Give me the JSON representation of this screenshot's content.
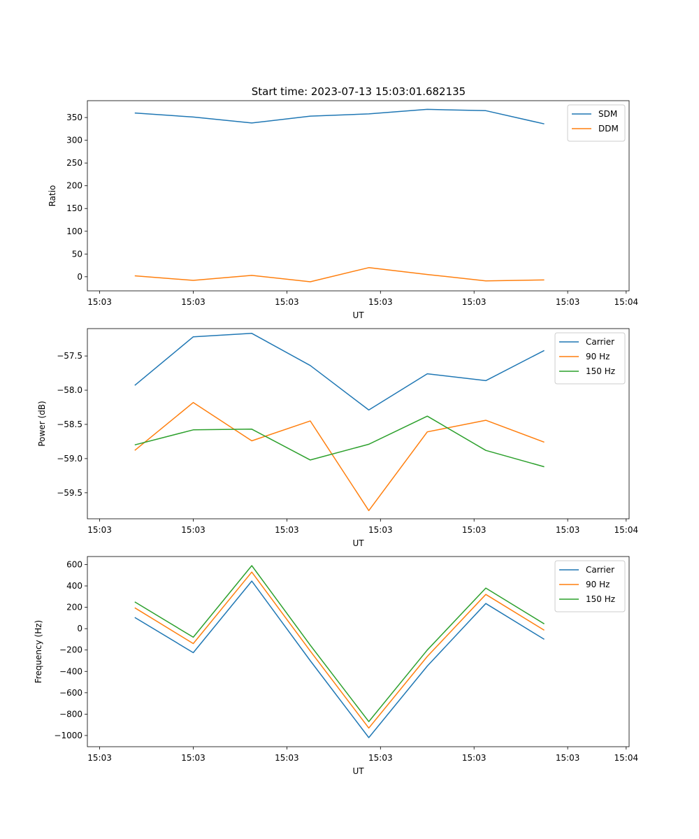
{
  "figure_title": "Start time: 2023-07-13 15:03:01.682135",
  "colors": {
    "blue": "#1f77b4",
    "orange": "#ff7f0e",
    "green": "#2ca02c"
  },
  "chart_data": [
    {
      "type": "line",
      "xlabel": "UT",
      "ylabel": "Ratio",
      "x": [
        1,
        2,
        3,
        4,
        5,
        6,
        7,
        8
      ],
      "xlim": [
        0.19,
        9.45
      ],
      "x_ticks": [
        0.4,
        2.0,
        3.6,
        5.2,
        6.8,
        8.4,
        9.4
      ],
      "x_tick_labels": [
        "15:03",
        "15:03",
        "15:03",
        "15:03",
        "15:03",
        "15:03",
        "15:04"
      ],
      "ylim": [
        -31,
        387
      ],
      "y_ticks": [
        0,
        50,
        100,
        150,
        200,
        250,
        300,
        350
      ],
      "y_tick_labels": [
        "0",
        "50",
        "100",
        "150",
        "200",
        "250",
        "300",
        "350"
      ],
      "legend_position": "top-right",
      "series": [
        {
          "name": "SDM",
          "color": "#1f77b4",
          "values": [
            360,
            351,
            338,
            353,
            358,
            368,
            365,
            336
          ]
        },
        {
          "name": "DDM",
          "color": "#ff7f0e",
          "values": [
            2,
            -8,
            3,
            -11,
            20,
            5,
            -9,
            -7
          ]
        }
      ]
    },
    {
      "type": "line",
      "xlabel": "UT",
      "ylabel": "Power (dB)",
      "x": [
        1,
        2,
        3,
        4,
        5,
        6,
        7,
        8
      ],
      "xlim": [
        0.19,
        9.45
      ],
      "x_ticks": [
        0.4,
        2.0,
        3.6,
        5.2,
        6.8,
        8.4,
        9.4
      ],
      "x_tick_labels": [
        "15:03",
        "15:03",
        "15:03",
        "15:03",
        "15:03",
        "15:03",
        "15:04"
      ],
      "ylim": [
        -59.88,
        -57.1
      ],
      "y_ticks": [
        -59.5,
        -59.0,
        -58.5,
        -58.0,
        -57.5
      ],
      "y_tick_labels": [
        "−59.5",
        "−59.0",
        "−58.5",
        "−58.0",
        "−57.5"
      ],
      "legend_position": "top-right",
      "series": [
        {
          "name": "Carrier",
          "color": "#1f77b4",
          "values": [
            -57.93,
            -57.22,
            -57.17,
            -57.64,
            -58.29,
            -57.76,
            -57.86,
            -57.42
          ]
        },
        {
          "name": "90 Hz",
          "color": "#ff7f0e",
          "values": [
            -58.88,
            -58.18,
            -58.74,
            -58.45,
            -59.76,
            -58.61,
            -58.44,
            -58.76
          ]
        },
        {
          "name": "150 Hz",
          "color": "#2ca02c",
          "values": [
            -58.8,
            -58.58,
            -58.57,
            -59.02,
            -58.79,
            -58.38,
            -58.88,
            -59.12
          ]
        }
      ]
    },
    {
      "type": "line",
      "xlabel": "UT",
      "ylabel": "Frequency (Hz)",
      "x": [
        1,
        2,
        3,
        4,
        5,
        6,
        7,
        8
      ],
      "xlim": [
        0.19,
        9.45
      ],
      "x_ticks": [
        0.4,
        2.0,
        3.6,
        5.2,
        6.8,
        8.4,
        9.4
      ],
      "x_tick_labels": [
        "15:03",
        "15:03",
        "15:03",
        "15:03",
        "15:03",
        "15:03",
        "15:04"
      ],
      "ylim": [
        -1105,
        675
      ],
      "y_ticks": [
        -1000,
        -800,
        -600,
        -400,
        -200,
        0,
        200,
        400,
        600
      ],
      "y_tick_labels": [
        "−1000",
        "−800",
        "−600",
        "−400",
        "−200",
        "0",
        "200",
        "400",
        "600"
      ],
      "legend_position": "top-right",
      "series": [
        {
          "name": "Carrier",
          "color": "#1f77b4",
          "values": [
            105,
            -225,
            445,
            -300,
            -1020,
            -350,
            235,
            -100
          ]
        },
        {
          "name": "90 Hz",
          "color": "#ff7f0e",
          "values": [
            195,
            -140,
            530,
            -210,
            -930,
            -260,
            320,
            -15
          ]
        },
        {
          "name": "150 Hz",
          "color": "#2ca02c",
          "values": [
            250,
            -80,
            590,
            -155,
            -870,
            -200,
            380,
            45
          ]
        }
      ]
    }
  ]
}
